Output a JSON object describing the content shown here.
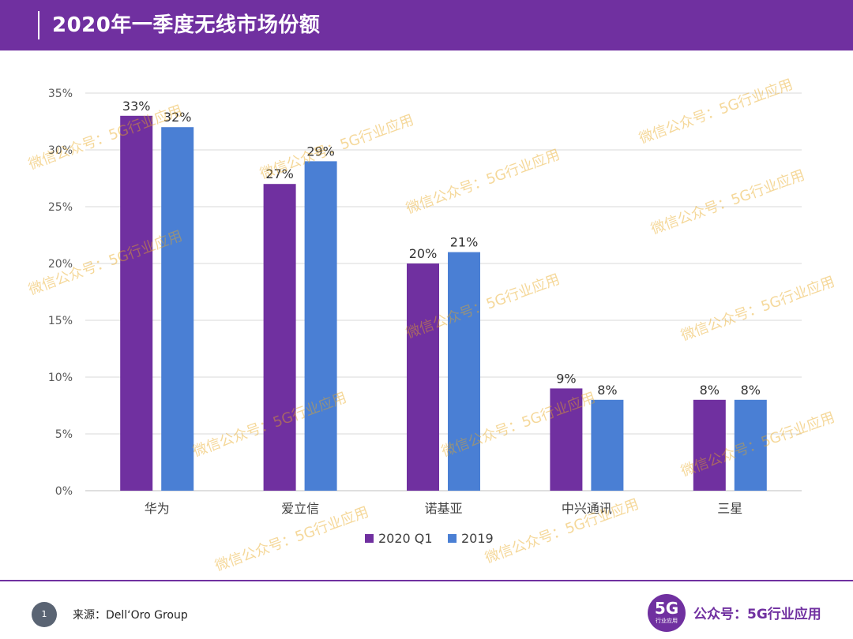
{
  "header": {
    "title": "2020年一季度无线市场份额"
  },
  "chart_data": {
    "type": "bar",
    "title": "2020年一季度无线市场份额",
    "categories": [
      "华为",
      "爱立信",
      "诺基亚",
      "中兴通讯",
      "三星"
    ],
    "series": [
      {
        "name": "2020 Q1",
        "color": "#7030a0",
        "values": [
          33,
          27,
          20,
          9,
          8
        ],
        "labels": [
          "33%",
          "27%",
          "20%",
          "9%",
          "8%"
        ]
      },
      {
        "name": "2019",
        "color": "#4a7fd4",
        "values": [
          32,
          29,
          21,
          8,
          8
        ],
        "labels": [
          "32%",
          "29%",
          "21%",
          "8%",
          "8%"
        ]
      }
    ],
    "ylim": [
      0,
      35
    ],
    "yticks": [
      0,
      5,
      10,
      15,
      20,
      25,
      30,
      35
    ],
    "ytick_labels": [
      "0%",
      "5%",
      "10%",
      "15%",
      "20%",
      "25%",
      "30%",
      "35%"
    ],
    "xlabel": "",
    "ylabel": "",
    "grid": true,
    "legend": "bottom-center"
  },
  "footer": {
    "page_number": "1",
    "source": "来源：Dell‘Oro Group",
    "logo_big": "5G",
    "logo_small": "行业应用",
    "account": "公众号：5G行业应用"
  },
  "watermark": {
    "text": "微信公众号：5G行业应用"
  }
}
